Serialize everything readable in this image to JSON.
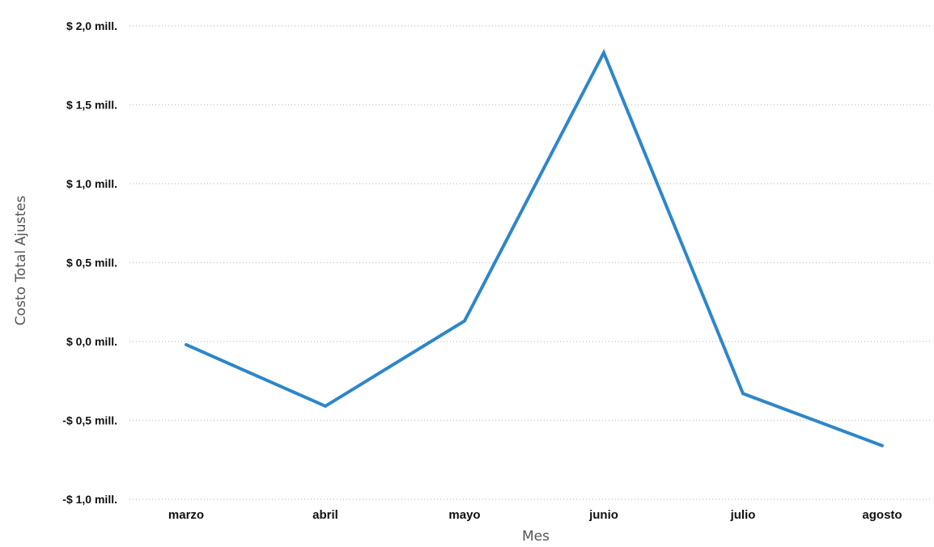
{
  "chart_data": {
    "type": "line",
    "title": "",
    "xlabel": "Mes",
    "ylabel": "Costo Total Ajustes",
    "categories": [
      "marzo",
      "abril",
      "mayo",
      "junio",
      "julio",
      "agosto"
    ],
    "series": [
      {
        "color": "#2e86c8",
        "values": [
          -0.02,
          -0.41,
          0.13,
          1.83,
          -0.33,
          -0.66
        ]
      }
    ],
    "ylim": [
      -1.0,
      2.0
    ],
    "yticks": [
      2.0,
      1.5,
      1.0,
      0.5,
      0.0,
      -0.5,
      -1.0
    ],
    "ytick_labels": [
      "$ 2,0 mill.",
      "$ 1,5 mill.",
      "$ 1,0 mill.",
      "$ 0,5 mill.",
      "$ 0,0 mill.",
      "-$ 0,5 mill.",
      "-$ 1,0 mill."
    ],
    "grid": true,
    "grid_axis": "y",
    "legend": "none"
  }
}
